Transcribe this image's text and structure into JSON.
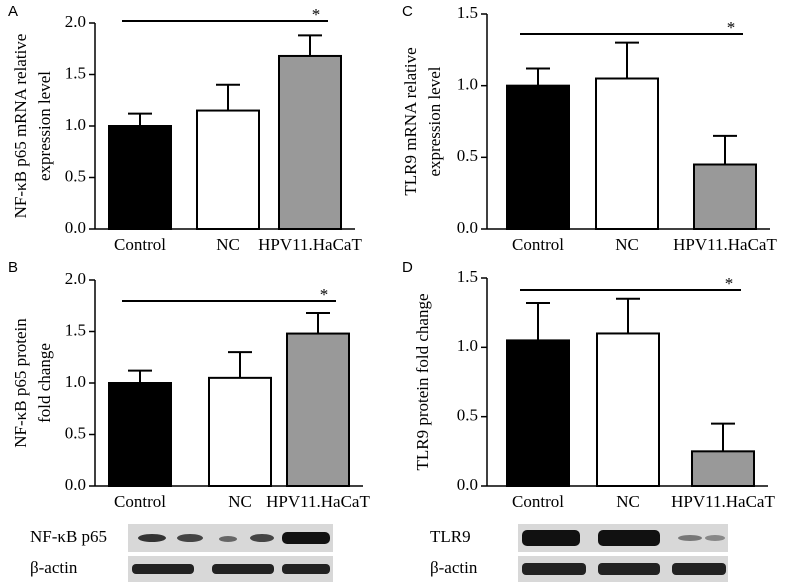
{
  "chart_data": [
    {
      "type": "bar",
      "panel": "A",
      "ylabel": [
        "NF-κB p65 mRNA relative",
        "expression level"
      ],
      "categories": [
        "Control",
        "NC",
        "HPV11.HaCaT"
      ],
      "values": [
        1.0,
        1.15,
        1.68
      ],
      "errors": [
        0.12,
        0.25,
        0.2
      ],
      "colors": [
        "#000000",
        "#ffffff",
        "#999999"
      ],
      "ylim": [
        0,
        2
      ],
      "yticks": [
        {
          "value": 0,
          "label": "0.0"
        },
        {
          "value": 0.5,
          "label": "0.5"
        },
        {
          "value": 1,
          "label": "1.0"
        },
        {
          "value": 1.5,
          "label": "1.5"
        },
        {
          "value": 2,
          "label": "2.0"
        }
      ],
      "significance": "*"
    },
    {
      "type": "bar",
      "panel": "C",
      "ylabel": [
        "TLR9 mRNA relative",
        "expression level"
      ],
      "categories": [
        "Control",
        "NC",
        "HPV11.HaCaT"
      ],
      "values": [
        1.0,
        1.05,
        0.45
      ],
      "errors": [
        0.12,
        0.25,
        0.2
      ],
      "colors": [
        "#000000",
        "#ffffff",
        "#999999"
      ],
      "ylim": [
        0,
        1.5
      ],
      "yticks": [
        {
          "value": 0,
          "label": "0.0"
        },
        {
          "value": 0.5,
          "label": "0.5"
        },
        {
          "value": 1,
          "label": "1.0"
        },
        {
          "value": 1.5,
          "label": "1.5"
        }
      ],
      "significance": "*"
    },
    {
      "type": "bar",
      "panel": "B",
      "ylabel": [
        "NF-κB p65 protein",
        "fold change"
      ],
      "categories": [
        "Control",
        "NC",
        "HPV11.HaCaT"
      ],
      "values": [
        1.0,
        1.05,
        1.48
      ],
      "errors": [
        0.12,
        0.25,
        0.2
      ],
      "colors": [
        "#000000",
        "#ffffff",
        "#999999"
      ],
      "ylim": [
        0,
        2
      ],
      "yticks": [
        {
          "value": 0,
          "label": "0.0"
        },
        {
          "value": 0.5,
          "label": "0.5"
        },
        {
          "value": 1,
          "label": "1.0"
        },
        {
          "value": 1.5,
          "label": "1.5"
        },
        {
          "value": 2,
          "label": "2.0"
        }
      ],
      "significance": "*"
    },
    {
      "type": "bar",
      "panel": "D",
      "ylabel": [
        "TLR9 protein fold change"
      ],
      "categories": [
        "Control",
        "NC",
        "HPV11.HaCaT"
      ],
      "values": [
        1.05,
        1.1,
        0.25
      ],
      "errors": [
        0.27,
        0.25,
        0.2
      ],
      "colors": [
        "#000000",
        "#ffffff",
        "#999999"
      ],
      "ylim": [
        0,
        1.5
      ],
      "yticks": [
        {
          "value": 0,
          "label": "0.0"
        },
        {
          "value": 0.5,
          "label": "0.5"
        },
        {
          "value": 1,
          "label": "1.0"
        },
        {
          "value": 1.5,
          "label": "1.5"
        }
      ],
      "significance": "*"
    }
  ],
  "blots": [
    {
      "rows": [
        "NF-κB p65",
        "β-actin"
      ]
    },
    {
      "rows": [
        "TLR9",
        "β-actin"
      ]
    }
  ]
}
